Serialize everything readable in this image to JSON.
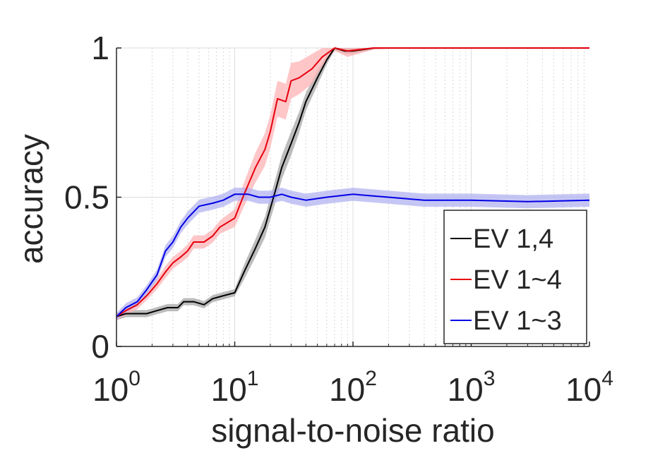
{
  "chart_data": {
    "type": "line",
    "title": "",
    "xlabel": "signal-to-noise ratio",
    "ylabel": "accuracy",
    "xscale": "log",
    "xlim": [
      1,
      10000
    ],
    "ylim": [
      0,
      1
    ],
    "x_ticks": [
      {
        "base": "10",
        "exp": "0"
      },
      {
        "base": "10",
        "exp": "1"
      },
      {
        "base": "10",
        "exp": "2"
      },
      {
        "base": "10",
        "exp": "3"
      },
      {
        "base": "10",
        "exp": "4"
      }
    ],
    "y_ticks": [
      "0",
      "0.5",
      "1"
    ],
    "grid": true,
    "legend_position": "bottom-right",
    "series": [
      {
        "name": "EV 1,4",
        "color": "#000000",
        "band_color": "#a6a6a6",
        "points": [
          [
            1,
            0.1
          ],
          [
            1.2,
            0.11
          ],
          [
            1.5,
            0.11
          ],
          [
            1.8,
            0.11
          ],
          [
            2.2,
            0.12
          ],
          [
            2.7,
            0.13
          ],
          [
            3.3,
            0.13
          ],
          [
            3.7,
            0.15
          ],
          [
            4.5,
            0.15
          ],
          [
            5.5,
            0.14
          ],
          [
            6.5,
            0.16
          ],
          [
            8,
            0.17
          ],
          [
            10,
            0.18
          ],
          [
            12,
            0.25
          ],
          [
            15,
            0.33
          ],
          [
            18,
            0.4
          ],
          [
            22,
            0.52
          ],
          [
            25,
            0.6
          ],
          [
            30,
            0.68
          ],
          [
            35,
            0.75
          ],
          [
            40,
            0.82
          ],
          [
            50,
            0.9
          ],
          [
            60,
            0.96
          ],
          [
            70,
            1.0
          ],
          [
            85,
            0.99
          ],
          [
            100,
            0.99
          ],
          [
            150,
            1.0
          ],
          [
            200,
            1.0
          ],
          [
            10000,
            1.0
          ]
        ],
        "band": [
          0.012,
          0.012,
          0.012,
          0.012,
          0.012,
          0.012,
          0.012,
          0.012,
          0.012,
          0.012,
          0.012,
          0.012,
          0.012,
          0.025,
          0.03,
          0.035,
          0.04,
          0.04,
          0.04,
          0.035,
          0.03,
          0.025,
          0.015,
          0.008,
          0.01,
          0.01,
          0.005,
          0.003,
          0.003
        ]
      },
      {
        "name": "EV 1~4",
        "color": "#e6000d",
        "band_color": "#ffb3b5",
        "points": [
          [
            1,
            0.1
          ],
          [
            1.2,
            0.12
          ],
          [
            1.5,
            0.14
          ],
          [
            1.8,
            0.17
          ],
          [
            2.2,
            0.21
          ],
          [
            2.6,
            0.25
          ],
          [
            3,
            0.28
          ],
          [
            3.5,
            0.3
          ],
          [
            4,
            0.32
          ],
          [
            4.5,
            0.35
          ],
          [
            5.5,
            0.35
          ],
          [
            6.5,
            0.37
          ],
          [
            7.5,
            0.4
          ],
          [
            10,
            0.43
          ],
          [
            12,
            0.51
          ],
          [
            15,
            0.6
          ],
          [
            18,
            0.66
          ],
          [
            20,
            0.72
          ],
          [
            23,
            0.83
          ],
          [
            27,
            0.82
          ],
          [
            30,
            0.89
          ],
          [
            35,
            0.9
          ],
          [
            45,
            0.93
          ],
          [
            55,
            0.97
          ],
          [
            70,
            1.0
          ],
          [
            90,
            0.99
          ],
          [
            150,
            1.0
          ],
          [
            200,
            1.0
          ],
          [
            10000,
            1.0
          ]
        ],
        "band": [
          0.012,
          0.015,
          0.015,
          0.015,
          0.018,
          0.02,
          0.02,
          0.02,
          0.022,
          0.022,
          0.022,
          0.022,
          0.022,
          0.03,
          0.04,
          0.05,
          0.055,
          0.055,
          0.06,
          0.06,
          0.06,
          0.055,
          0.05,
          0.03,
          0.01,
          0.02,
          0.005,
          0.003,
          0.003
        ]
      },
      {
        "name": "EV 1~3",
        "color": "#0000e6",
        "band_color": "#b3b3f2",
        "points": [
          [
            1,
            0.1
          ],
          [
            1.2,
            0.13
          ],
          [
            1.5,
            0.15
          ],
          [
            1.8,
            0.19
          ],
          [
            2.2,
            0.24
          ],
          [
            2.6,
            0.32
          ],
          [
            3,
            0.35
          ],
          [
            3.5,
            0.4
          ],
          [
            4,
            0.43
          ],
          [
            5,
            0.47
          ],
          [
            6.5,
            0.48
          ],
          [
            8,
            0.49
          ],
          [
            10,
            0.51
          ],
          [
            13,
            0.51
          ],
          [
            16,
            0.5
          ],
          [
            20,
            0.5
          ],
          [
            25,
            0.51
          ],
          [
            30,
            0.5
          ],
          [
            40,
            0.49
          ],
          [
            60,
            0.5
          ],
          [
            100,
            0.51
          ],
          [
            200,
            0.5
          ],
          [
            400,
            0.49
          ],
          [
            1000,
            0.49
          ],
          [
            3000,
            0.485
          ],
          [
            10000,
            0.49
          ]
        ],
        "band": [
          0.012,
          0.015,
          0.015,
          0.015,
          0.018,
          0.02,
          0.02,
          0.02,
          0.022,
          0.022,
          0.022,
          0.022,
          0.022,
          0.022,
          0.022,
          0.022,
          0.022,
          0.022,
          0.022,
          0.022,
          0.022,
          0.022,
          0.022,
          0.022,
          0.022,
          0.022
        ]
      }
    ]
  }
}
